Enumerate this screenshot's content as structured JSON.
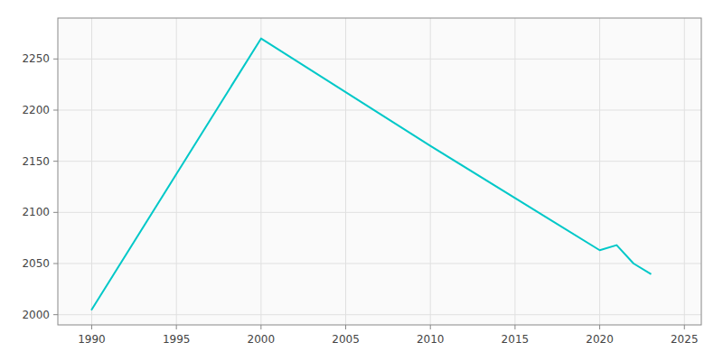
{
  "chart_data": {
    "type": "line",
    "x": [
      1990,
      2000,
      2010,
      2020,
      2021,
      2022,
      2023
    ],
    "values": [
      2005,
      2270,
      2165,
      2063,
      2068,
      2050,
      2040
    ],
    "color": "#00C8C8",
    "xlim": [
      1988,
      2026
    ],
    "ylim": [
      1990,
      2290
    ],
    "xticks": [
      1990,
      1995,
      2000,
      2005,
      2010,
      2015,
      2020,
      2025
    ],
    "yticks": [
      2000,
      2050,
      2100,
      2150,
      2200,
      2250
    ],
    "grid": true
  }
}
